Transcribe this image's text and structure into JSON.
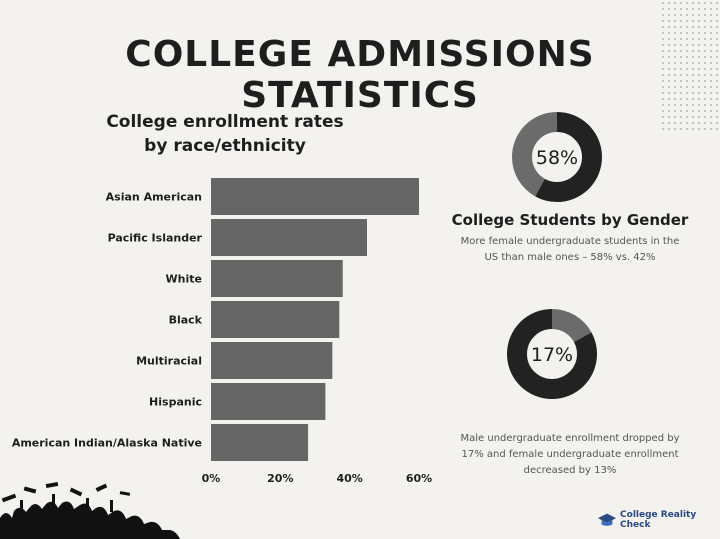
{
  "header": {
    "title": "COLLEGE ADMISSIONS STATISTICS"
  },
  "chart_data": [
    {
      "type": "bar",
      "orientation": "horizontal",
      "title_lines": [
        "College enrollment rates",
        "by race/ethnicity"
      ],
      "categories": [
        "Asian American",
        "Pacific Islander",
        "White",
        "Black",
        "Multiracial",
        "Hispanic",
        "American Indian/Alaska Native"
      ],
      "values": [
        60,
        45,
        38,
        37,
        35,
        33,
        28
      ],
      "xlim": [
        0,
        60
      ],
      "xticks": [
        "0%",
        "20%",
        "40%",
        "60%"
      ],
      "grid": false,
      "bar_color": "#666666"
    },
    {
      "type": "pie",
      "style": "donut",
      "center_label": "58%",
      "values": [
        58,
        42
      ],
      "title": "College Students by Gender",
      "caption": "More female undergraduate students in the US than male ones – 58% vs. 42%",
      "colors": [
        "#222222",
        "#6b6b6b"
      ]
    },
    {
      "type": "pie",
      "style": "donut",
      "center_label": "17%",
      "values": [
        17,
        83
      ],
      "caption": "Male undergraduate enrollment dropped by 17% and female undergraduate enrollment decreased by 13%",
      "colors": [
        "#6b6b6b",
        "#222222"
      ]
    }
  ],
  "footer": {
    "brand": "College Reality Check"
  }
}
